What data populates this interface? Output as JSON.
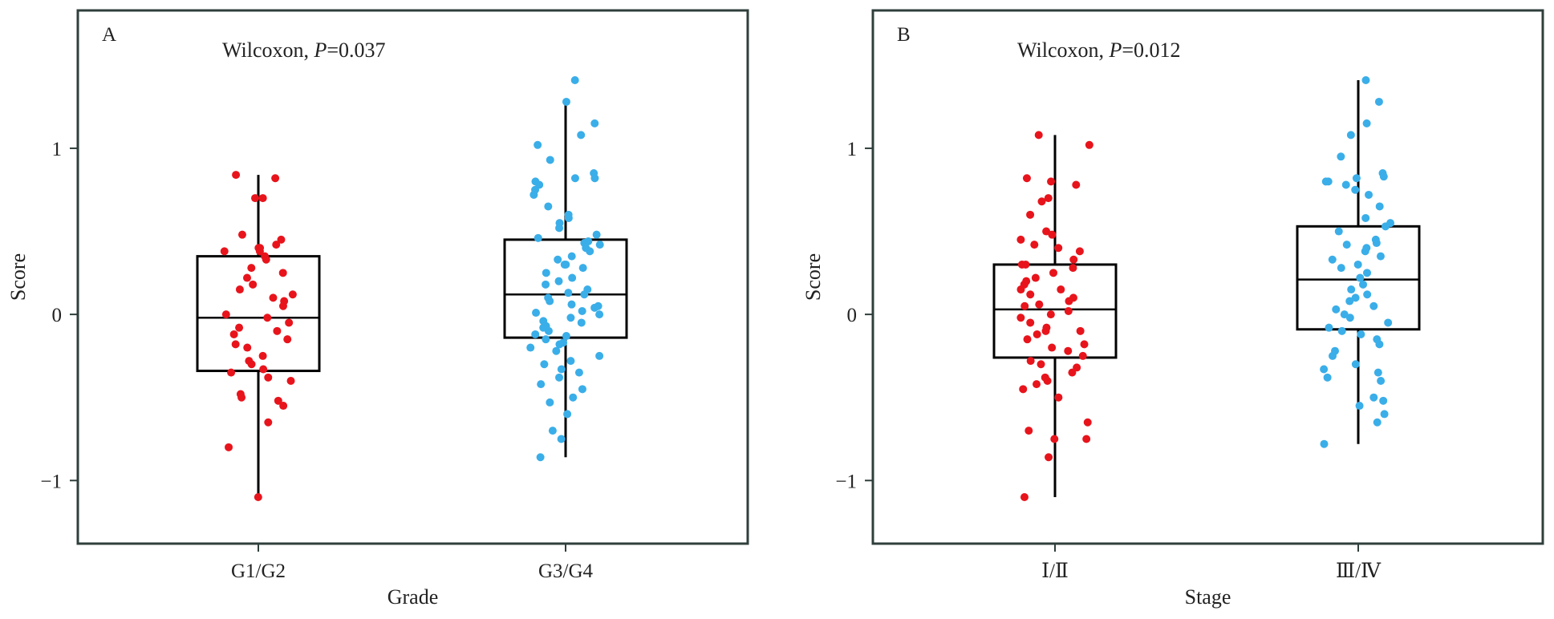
{
  "chart_data": [
    {
      "type": "box",
      "panel_label": "A",
      "annotation": {
        "prefix": "Wilcoxon, ",
        "p_symbol": "P",
        "p_value": "=0.037"
      },
      "xlabel": "Grade",
      "ylabel": "Score",
      "ylim": [
        -1.38,
        1.83
      ],
      "y_ticks": [
        -1,
        0,
        1
      ],
      "y_tick_labels": [
        "−1",
        "0",
        "1"
      ],
      "categories": [
        "G1/G2",
        "G3/G4"
      ],
      "groups": [
        {
          "name": "G1/G2",
          "color": "#e8141c",
          "box": {
            "lower_whisker": -1.1,
            "q1": -0.34,
            "median": -0.02,
            "q3": 0.35,
            "upper_whisker": 0.84
          },
          "points": [
            0.84,
            0.82,
            0.7,
            0.7,
            0.48,
            0.45,
            0.42,
            0.4,
            0.4,
            0.38,
            0.38,
            0.35,
            0.33,
            0.28,
            0.25,
            0.22,
            0.18,
            0.15,
            0.12,
            0.1,
            0.08,
            0.05,
            0.0,
            -0.02,
            -0.05,
            -0.08,
            -0.1,
            -0.12,
            -0.15,
            -0.18,
            -0.2,
            -0.25,
            -0.28,
            -0.3,
            -0.33,
            -0.35,
            -0.38,
            -0.4,
            -0.48,
            -0.5,
            -0.52,
            -0.55,
            -0.65,
            -0.8,
            -1.1
          ]
        },
        {
          "name": "G3/G4",
          "color": "#3aaee8",
          "box": {
            "lower_whisker": -0.86,
            "q1": -0.14,
            "median": 0.12,
            "q3": 0.45,
            "upper_whisker": 1.27
          },
          "points": [
            1.41,
            1.28,
            1.15,
            1.08,
            1.02,
            0.93,
            0.85,
            0.82,
            0.82,
            0.8,
            0.78,
            0.75,
            0.72,
            0.65,
            0.6,
            0.58,
            0.55,
            0.52,
            0.48,
            0.46,
            0.44,
            0.43,
            0.42,
            0.4,
            0.38,
            0.35,
            0.33,
            0.3,
            0.3,
            0.28,
            0.25,
            0.22,
            0.2,
            0.18,
            0.15,
            0.13,
            0.12,
            0.1,
            0.08,
            0.06,
            0.05,
            0.04,
            0.02,
            0.01,
            0.0,
            -0.02,
            -0.04,
            -0.05,
            -0.07,
            -0.08,
            -0.1,
            -0.12,
            -0.13,
            -0.15,
            -0.17,
            -0.18,
            -0.2,
            -0.22,
            -0.25,
            -0.28,
            -0.3,
            -0.33,
            -0.35,
            -0.38,
            -0.42,
            -0.45,
            -0.5,
            -0.53,
            -0.6,
            -0.7,
            -0.75,
            -0.86
          ]
        }
      ]
    },
    {
      "type": "box",
      "panel_label": "B",
      "annotation": {
        "prefix": "Wilcoxon, ",
        "p_symbol": "P",
        "p_value": "=0.012"
      },
      "xlabel": "Stage",
      "ylabel": "Score",
      "ylim": [
        -1.38,
        1.83
      ],
      "y_ticks": [
        -1,
        0,
        1
      ],
      "y_tick_labels": [
        "−1",
        "0",
        "1"
      ],
      "categories": [
        "Ⅰ/Ⅱ",
        "Ⅲ/Ⅳ"
      ],
      "groups": [
        {
          "name": "Ⅰ/Ⅱ",
          "color": "#e8141c",
          "box": {
            "lower_whisker": -1.1,
            "q1": -0.26,
            "median": 0.03,
            "q3": 0.3,
            "upper_whisker": 1.08
          },
          "points": [
            1.08,
            1.02,
            0.82,
            0.8,
            0.78,
            0.7,
            0.68,
            0.6,
            0.5,
            0.48,
            0.45,
            0.42,
            0.4,
            0.38,
            0.33,
            0.3,
            0.3,
            0.28,
            0.25,
            0.22,
            0.2,
            0.18,
            0.15,
            0.15,
            0.12,
            0.1,
            0.08,
            0.06,
            0.05,
            0.02,
            0.0,
            -0.02,
            -0.05,
            -0.08,
            -0.1,
            -0.1,
            -0.12,
            -0.15,
            -0.18,
            -0.2,
            -0.22,
            -0.25,
            -0.28,
            -0.3,
            -0.32,
            -0.35,
            -0.38,
            -0.4,
            -0.42,
            -0.45,
            -0.5,
            -0.65,
            -0.7,
            -0.75,
            -0.75,
            -0.86,
            -1.1
          ]
        },
        {
          "name": "Ⅲ/Ⅳ",
          "color": "#3aaee8",
          "box": {
            "lower_whisker": -0.78,
            "q1": -0.09,
            "median": 0.21,
            "q3": 0.53,
            "upper_whisker": 1.41
          },
          "points": [
            1.41,
            1.28,
            1.15,
            1.08,
            0.95,
            0.85,
            0.83,
            0.82,
            0.8,
            0.8,
            0.78,
            0.75,
            0.72,
            0.65,
            0.58,
            0.55,
            0.53,
            0.5,
            0.45,
            0.43,
            0.42,
            0.4,
            0.38,
            0.35,
            0.33,
            0.3,
            0.28,
            0.25,
            0.22,
            0.18,
            0.15,
            0.12,
            0.1,
            0.08,
            0.05,
            0.03,
            0.0,
            -0.02,
            -0.05,
            -0.08,
            -0.1,
            -0.12,
            -0.15,
            -0.18,
            -0.22,
            -0.25,
            -0.3,
            -0.33,
            -0.35,
            -0.38,
            -0.4,
            -0.5,
            -0.52,
            -0.55,
            -0.6,
            -0.65,
            -0.78
          ]
        }
      ]
    }
  ]
}
